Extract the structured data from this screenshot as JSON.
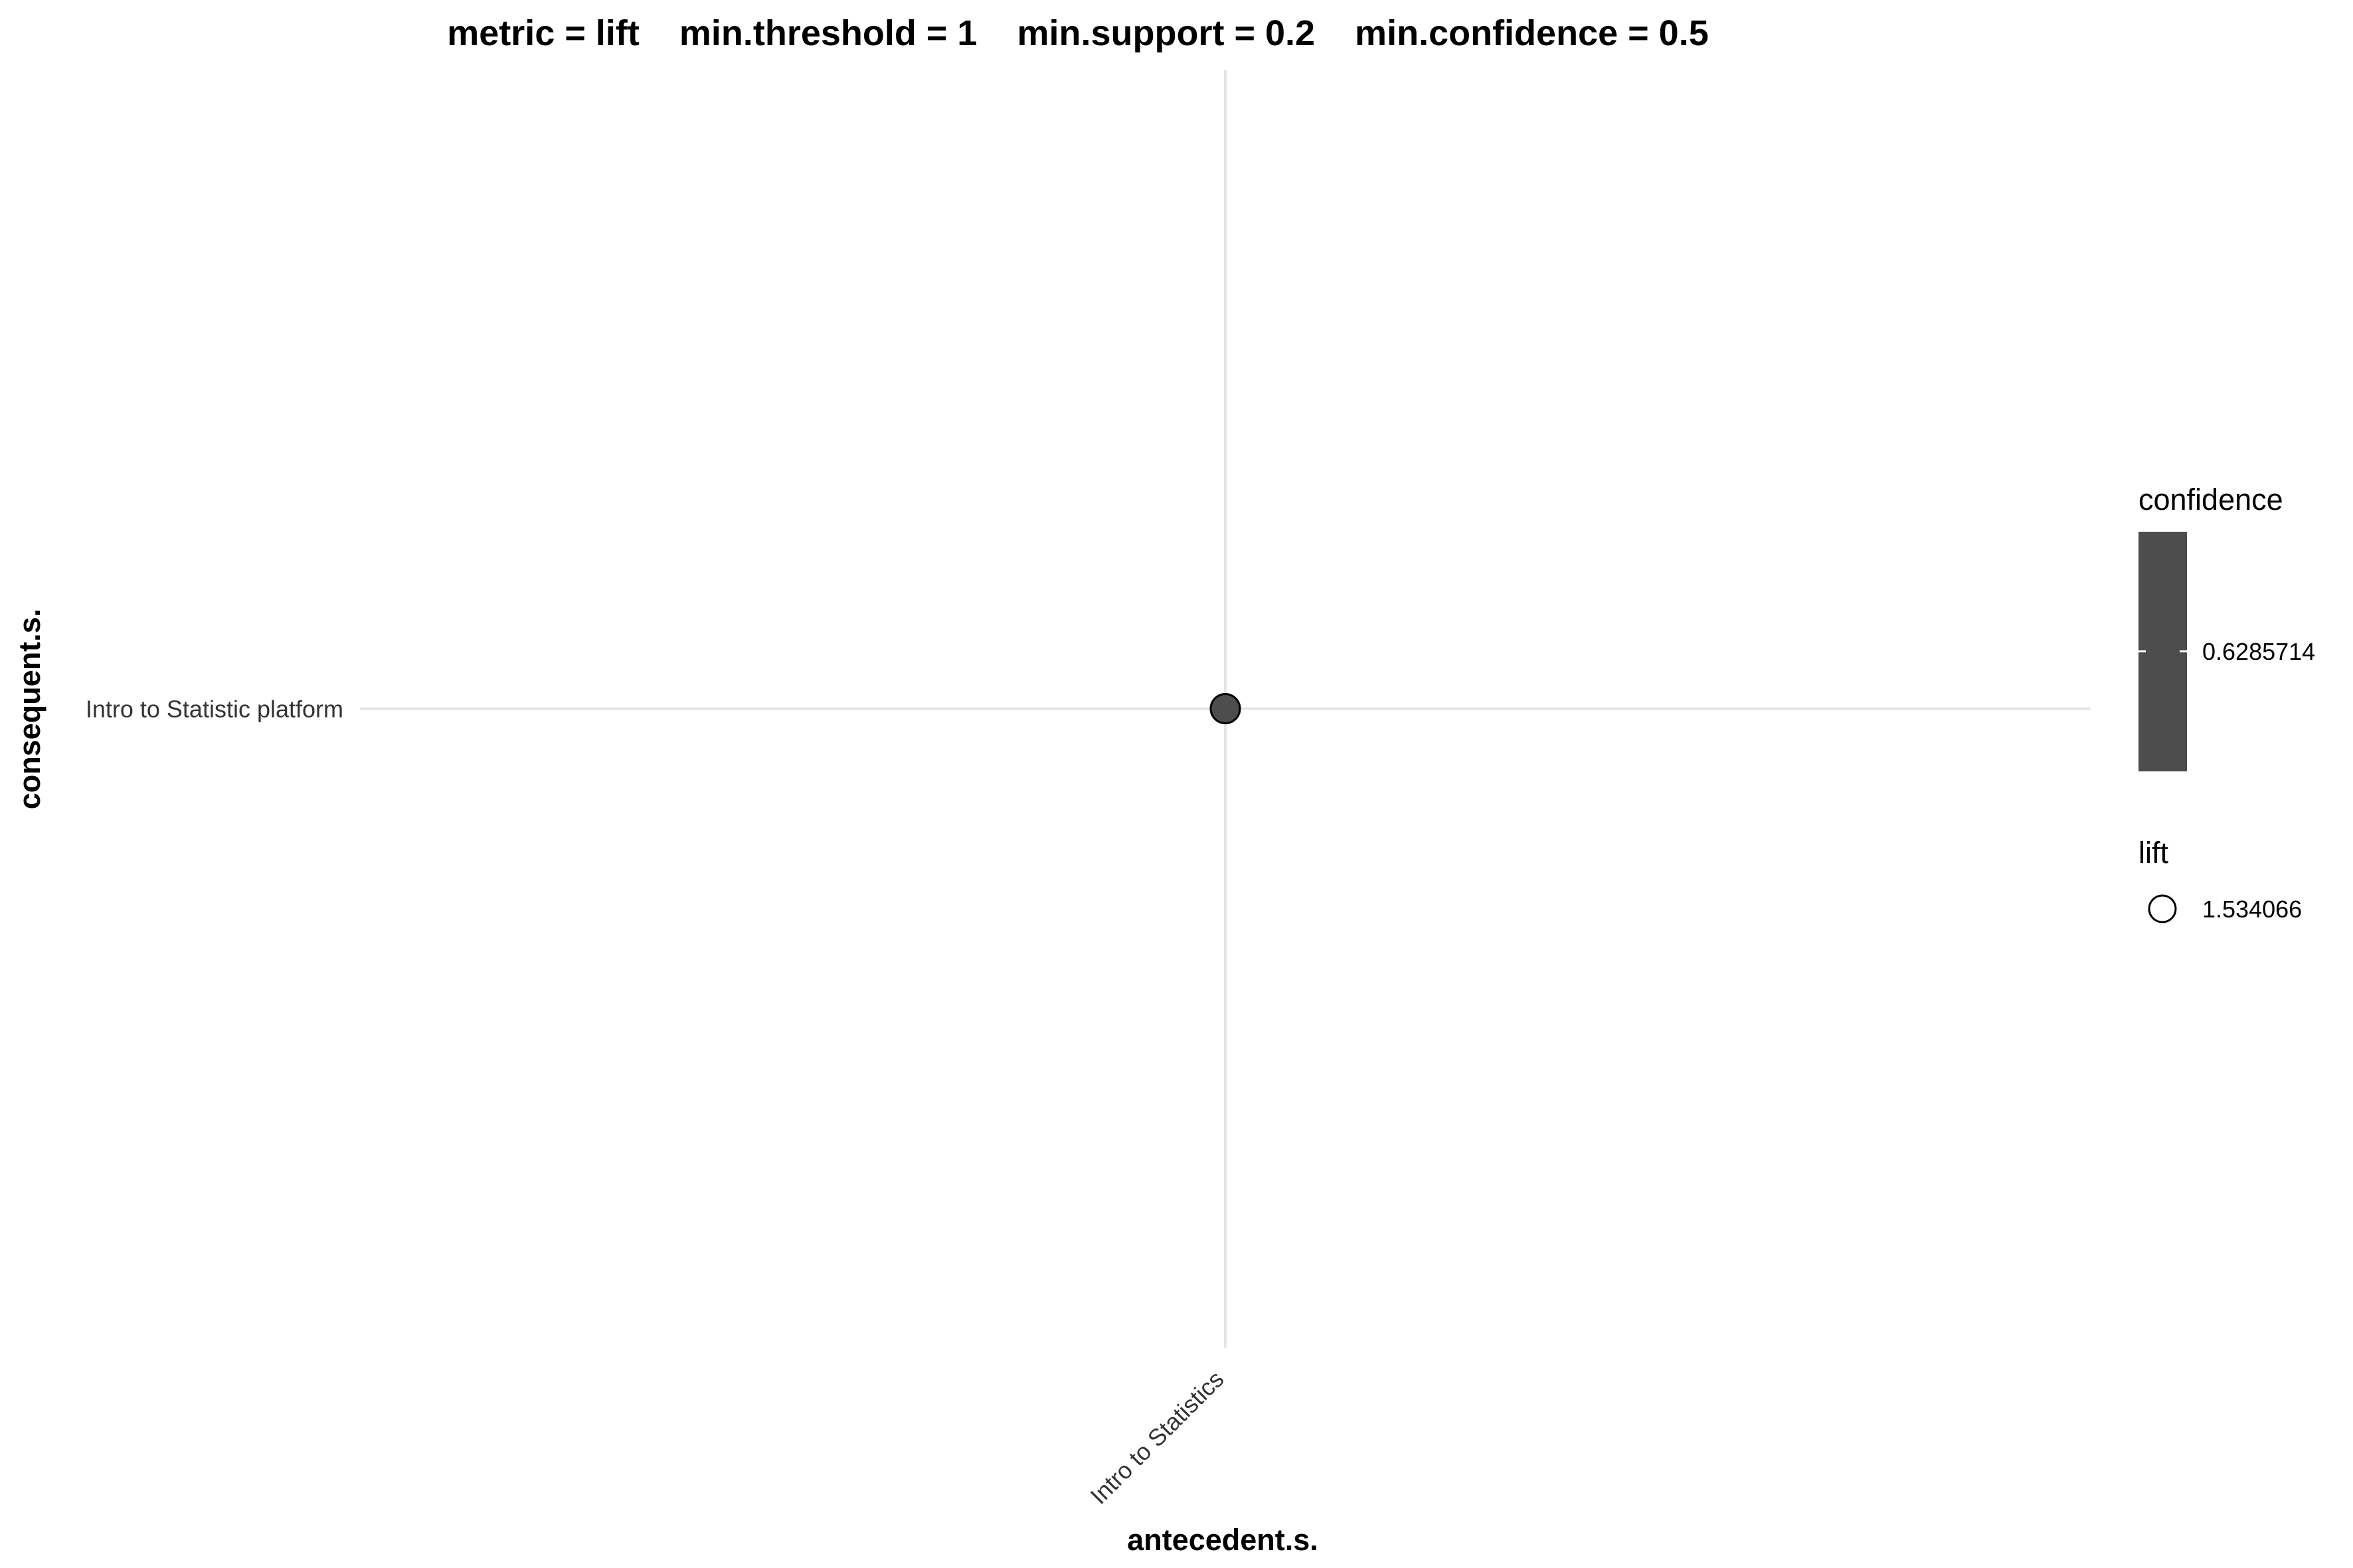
{
  "chart_data": {
    "type": "scatter",
    "title": "metric = lift    min.threshold = 1    min.support = 0.2    min.confidence = 0.5",
    "xlabel": "antecedent.s.",
    "ylabel": "consequent.s.",
    "x_categories": [
      "Intro to Statistics"
    ],
    "y_categories": [
      "Intro to Statistic platform"
    ],
    "grid": true,
    "points": [
      {
        "x": "Intro to Statistics",
        "y": "Intro to Statistic platform",
        "confidence": 0.6285714,
        "lift": 1.534066
      }
    ],
    "legend": {
      "placement": "right",
      "color_title": "confidence",
      "color_label": "0.6285714",
      "size_title": "lift",
      "size_label": "1.534066"
    },
    "colors": {
      "point_fill": "#4d4d4d",
      "point_stroke": "#000000",
      "colorbar": "#4d4d4d",
      "grid": "#e5e5e5"
    }
  }
}
